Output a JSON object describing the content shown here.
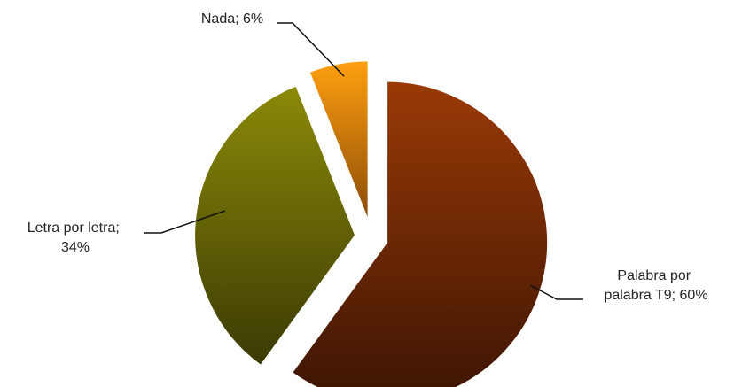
{
  "chart_data": {
    "type": "pie",
    "slices": [
      {
        "label_lines": [
          "Palabra por",
          "palabra T9; 60%"
        ],
        "value": 60,
        "category": "Palabra por palabra T9",
        "colors": [
          "#9a3a06",
          "#3b1403"
        ]
      },
      {
        "label_lines": [
          "Letra por letra;",
          "34%"
        ],
        "value": 34,
        "category": "Letra por letra",
        "colors": [
          "#8c8a08",
          "#3a3a04"
        ]
      },
      {
        "label_lines": [
          "Nada; 6%"
        ],
        "value": 6,
        "category": "Nada",
        "colors": [
          "#ffa010",
          "#8a4a06"
        ]
      }
    ],
    "legend": "none"
  }
}
